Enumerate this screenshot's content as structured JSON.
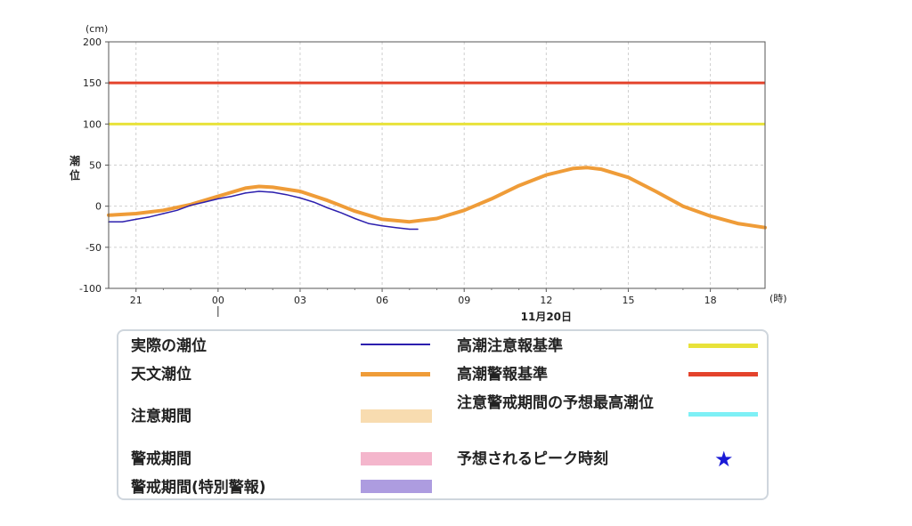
{
  "chart_data": {
    "type": "line",
    "y_unit": "(cm)",
    "x_unit": "(時)",
    "ylabel": "潮位",
    "date_label": "11月20日",
    "ylim": [
      -100,
      200
    ],
    "y_ticks": [
      200,
      150,
      100,
      50,
      0,
      -50,
      -100
    ],
    "x_ticks": [
      "21",
      "00",
      "03",
      "06",
      "09",
      "12",
      "15",
      "18"
    ],
    "x_range_hours": [
      -4,
      20
    ],
    "reference_lines": [
      {
        "name": "高潮注意報基準",
        "value": 100,
        "color": "#e8e23a"
      },
      {
        "name": "高潮警報基準",
        "value": 150,
        "color": "#e4432c"
      }
    ],
    "series": [
      {
        "name": "天文潮位",
        "color": "#ef9c38",
        "x": [
          -4,
          -3,
          -2,
          -1,
          0,
          1,
          1.5,
          2,
          3,
          4,
          5,
          6,
          7,
          8,
          9,
          10,
          11,
          12,
          13,
          13.5,
          14,
          15,
          16,
          17,
          18,
          19,
          20
        ],
        "y": [
          -11,
          -9,
          -5,
          2,
          12,
          22,
          24,
          23,
          18,
          7,
          -6,
          -16,
          -19,
          -15,
          -5,
          9,
          25,
          38,
          46,
          47,
          45,
          35,
          18,
          0,
          -12,
          -21,
          -26
        ]
      },
      {
        "name": "実際の潮位",
        "color": "#2c1fae",
        "x": [
          -4,
          -3.5,
          -3,
          -2.5,
          -2,
          -1.5,
          -1,
          -0.5,
          0,
          0.5,
          1,
          1.5,
          2,
          2.5,
          3,
          3.5,
          4,
          4.5,
          5,
          5.5,
          6,
          6.5,
          7,
          7.3
        ],
        "y": [
          -19,
          -19,
          -16,
          -13,
          -9,
          -5,
          1,
          5,
          9,
          12,
          16,
          18,
          17,
          14,
          10,
          5,
          -2,
          -8,
          -15,
          -21,
          -24,
          -26,
          -28,
          -28
        ]
      }
    ]
  },
  "legend": {
    "items": [
      {
        "label": "実際の潮位",
        "color": "#2c1fae",
        "kind": "line"
      },
      {
        "label": "高潮注意報基準",
        "color": "#e8e23a",
        "kind": "line"
      },
      {
        "label": "天文潮位",
        "color": "#ef9c38",
        "kind": "line"
      },
      {
        "label": "高潮警報基準",
        "color": "#e4432c",
        "kind": "line"
      },
      {
        "label": "注意期間",
        "color": "#f8dcb0",
        "kind": "band"
      },
      {
        "label": "注意警戒期間の予想最高潮位",
        "color": "#7ef0f6",
        "kind": "line"
      },
      {
        "label": "警戒期間",
        "color": "#f4b6cc",
        "kind": "band"
      },
      {
        "label": "予想されるピーク時刻",
        "color": "#1a1ad6",
        "kind": "star"
      },
      {
        "label": "警戒期間(特別警報)",
        "color": "#ad9ce0",
        "kind": "band"
      }
    ]
  }
}
